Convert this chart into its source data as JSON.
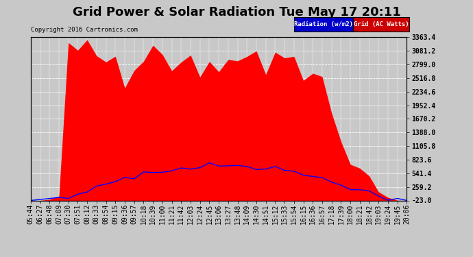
{
  "title": "Grid Power & Solar Radiation Tue May 17 20:11",
  "copyright": "Copyright 2016 Cartronics.com",
  "ylabel_right_ticks": [
    -23.0,
    259.2,
    541.4,
    823.6,
    1105.8,
    1388.0,
    1670.2,
    1952.4,
    2234.6,
    2516.8,
    2799.0,
    3081.2,
    3363.4
  ],
  "ymin": -23.0,
  "ymax": 3363.4,
  "legend_radiation": "Radiation (w/m2)",
  "legend_grid": "Grid (AC Watts)",
  "legend_radiation_bg": "#0000cc",
  "legend_grid_bg": "#cc0000",
  "bg_color": "#c8c8c8",
  "plot_bg_color": "#c8c8c8",
  "red_fill_color": "#ff0000",
  "blue_line_color": "#0000ff",
  "title_fontsize": 13,
  "tick_fontsize": 7,
  "x_tick_labels": [
    "05:44",
    "06:27",
    "06:48",
    "07:09",
    "07:30",
    "07:51",
    "08:12",
    "08:33",
    "08:54",
    "09:15",
    "09:36",
    "09:57",
    "10:18",
    "10:39",
    "11:00",
    "11:21",
    "11:42",
    "12:03",
    "12:24",
    "12:45",
    "13:06",
    "13:27",
    "13:48",
    "14:09",
    "14:30",
    "14:51",
    "15:12",
    "15:33",
    "15:54",
    "16:15",
    "16:36",
    "16:57",
    "17:18",
    "17:39",
    "18:00",
    "18:21",
    "18:42",
    "19:03",
    "19:24",
    "19:45",
    "20:06"
  ]
}
